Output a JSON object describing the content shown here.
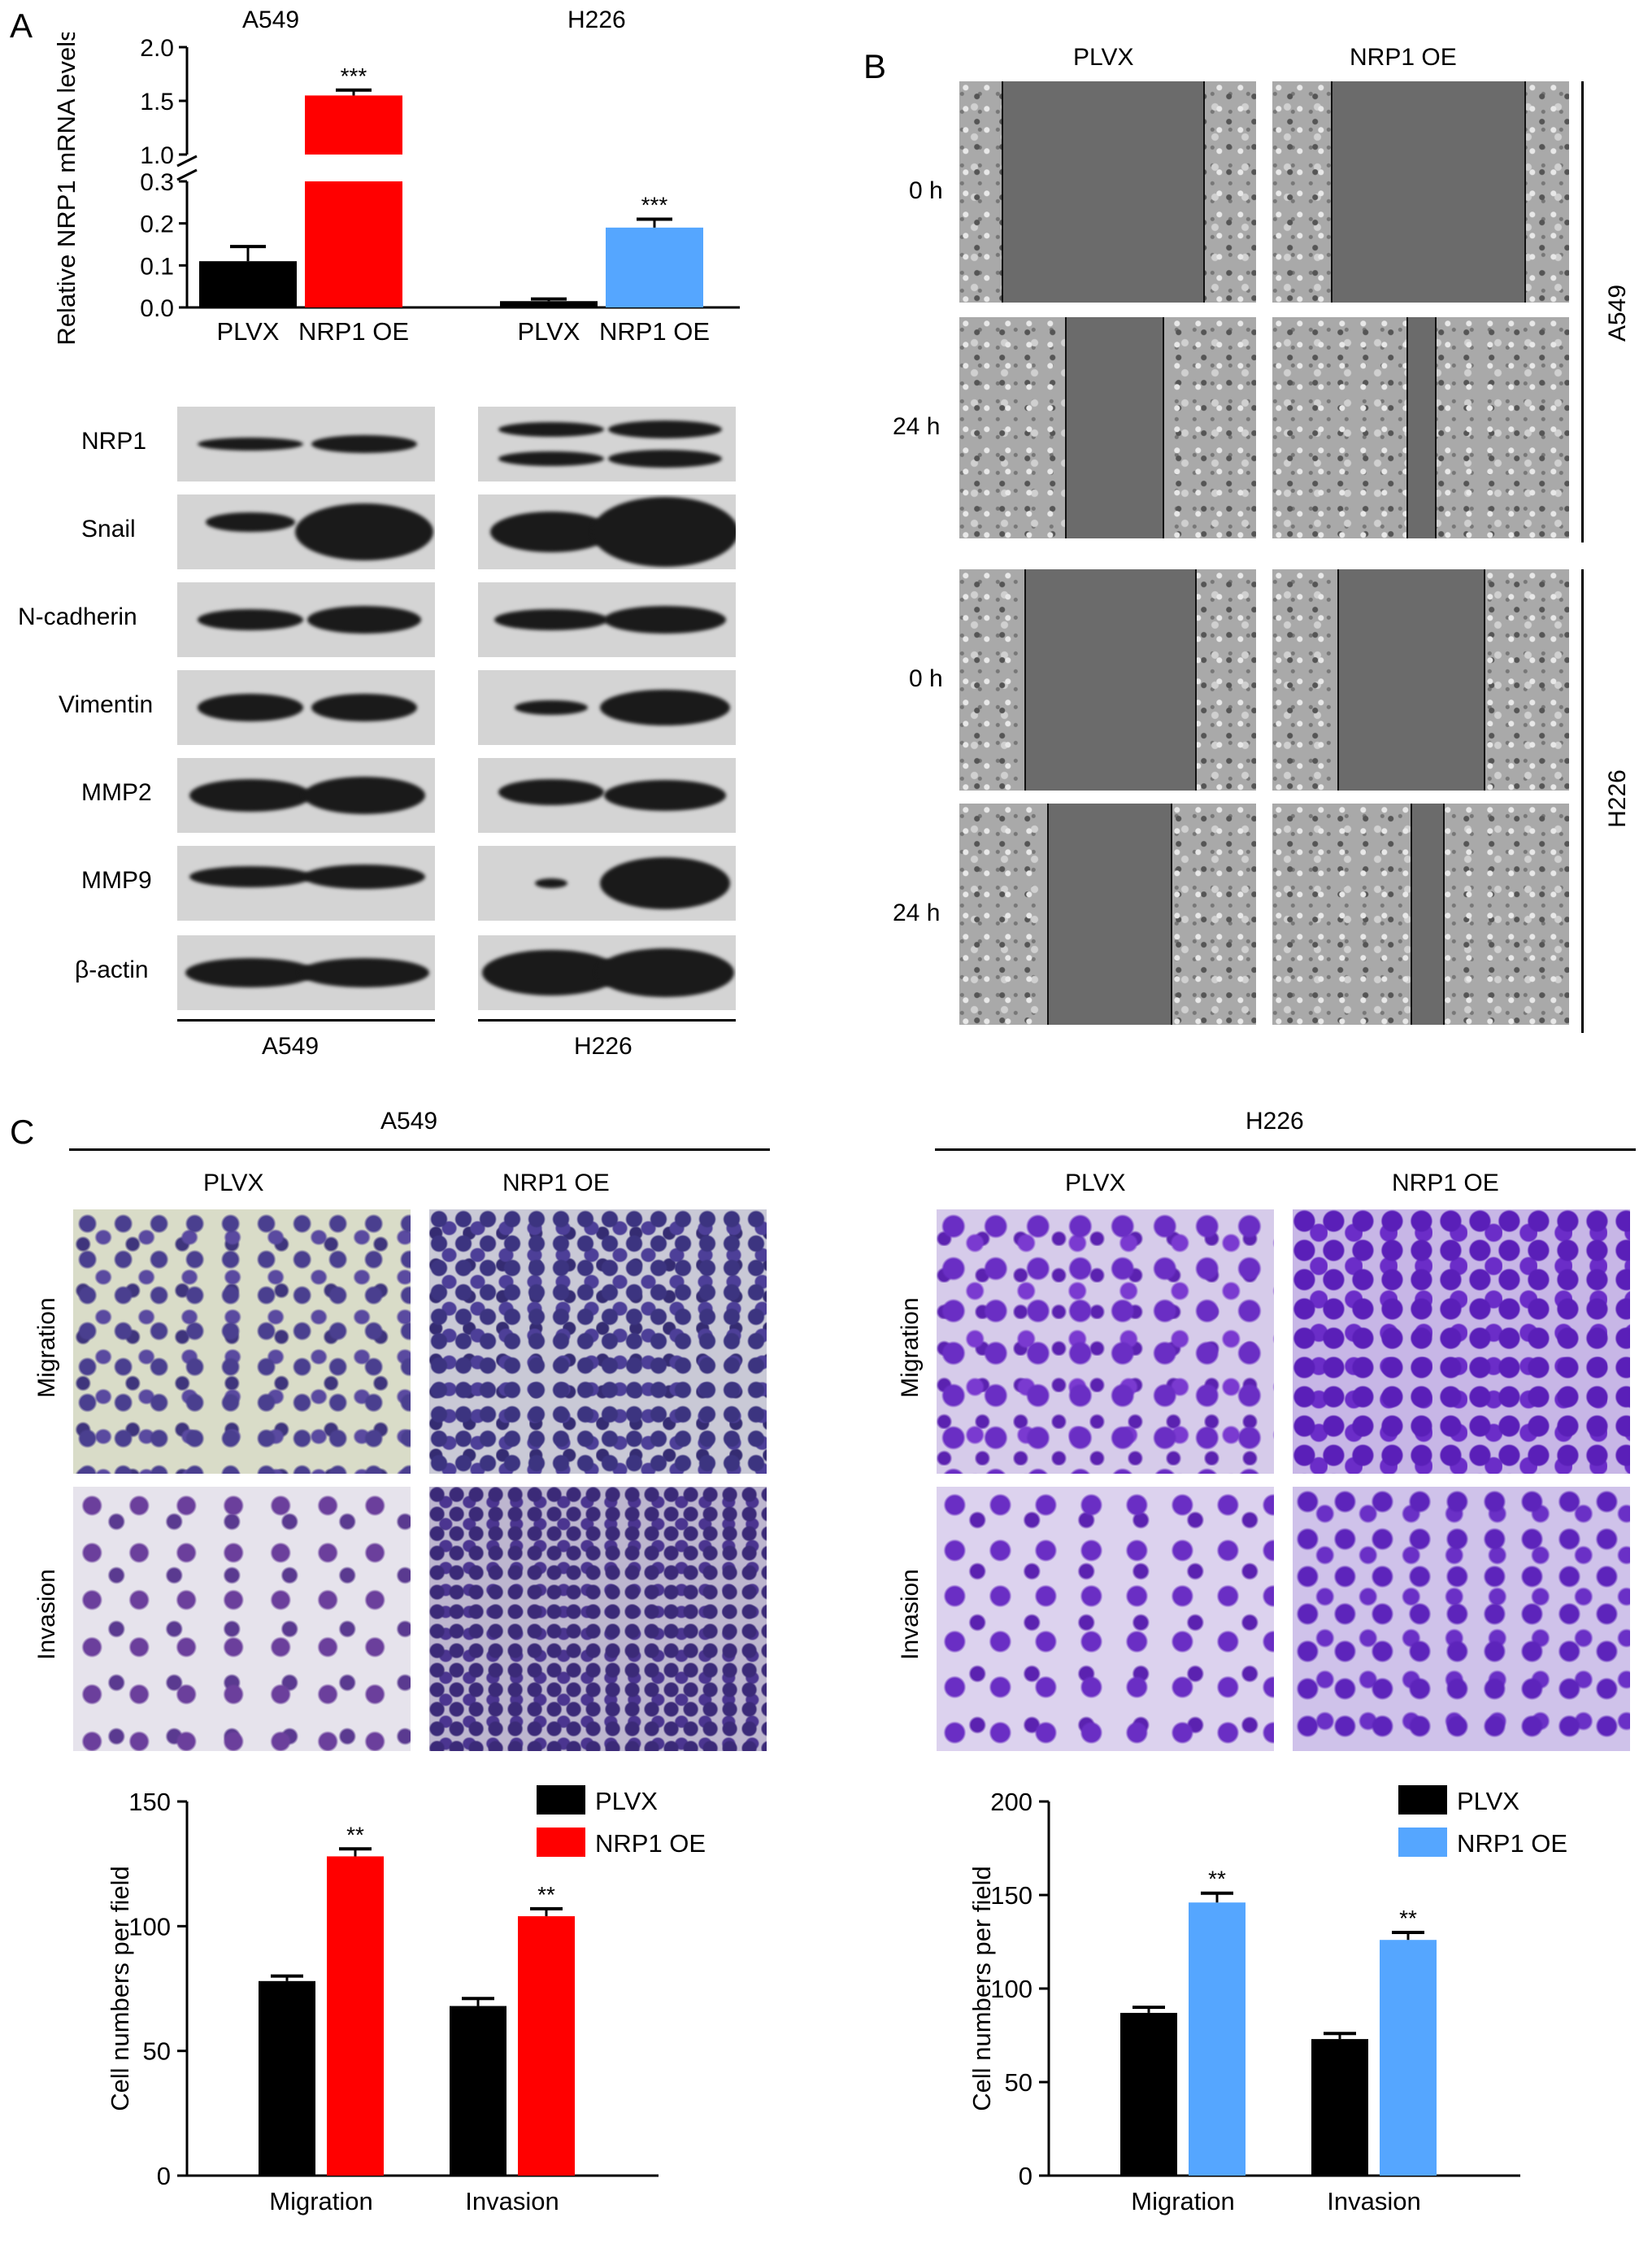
{
  "panels": {
    "a": "A",
    "b": "B",
    "c": "C"
  },
  "colors": {
    "plvx": "#000000",
    "oe_a549": "#ff0000",
    "oe_h226": "#55a6ff"
  },
  "panel_a": {
    "cell_line_a549": "A549",
    "cell_line_h226": "H226",
    "western": {
      "proteins": [
        "NRP1",
        "Snail",
        "N-cadherin",
        "Vimentin",
        "MMP2",
        "MMP9",
        "β-actin"
      ],
      "group_a549": "A549",
      "group_h226": "H226"
    }
  },
  "panel_b": {
    "col_plvx": "PLVX",
    "col_oe": "NRP1 OE",
    "rows": [
      "0 h",
      "24 h",
      "0 h",
      "24 h"
    ],
    "side_a549": "A549",
    "side_h226": "H226"
  },
  "panel_c": {
    "header_a549": "A549",
    "header_h226": "H226",
    "col_plvx": "PLVX",
    "col_oe": "NRP1 OE",
    "row_migration": "Migration",
    "row_invasion": "Invasion"
  },
  "chart_data": [
    {
      "type": "bar",
      "categories": [
        "PLVX",
        "NRP1 OE",
        "PLVX",
        "NRP1 OE"
      ],
      "groups": [
        "A549",
        "H226"
      ],
      "values": [
        0.11,
        1.55,
        0.015,
        0.19
      ],
      "errors": [
        0.035,
        0.05,
        0.005,
        0.02
      ],
      "significance": [
        "",
        "***",
        "",
        "***"
      ],
      "ylabel": "Relative NRP1 mRNA levels",
      "yticks_lower": [
        "0.0",
        "0.1",
        "0.2",
        "0.3"
      ],
      "yticks_upper": [
        "1.0",
        "1.5",
        "2.0"
      ],
      "ylim": [
        0,
        2.0
      ],
      "axis_break": [
        0.3,
        1.0
      ]
    },
    {
      "type": "bar",
      "categories": [
        "Migration",
        "Invasion"
      ],
      "series": [
        {
          "name": "PLVX",
          "values": [
            78,
            68
          ],
          "errors": [
            2,
            3
          ]
        },
        {
          "name": "NRP1 OE",
          "values": [
            128,
            104
          ],
          "errors": [
            3,
            3
          ]
        }
      ],
      "significance": [
        "**",
        "**"
      ],
      "ylabel": "Cell numbers per field",
      "yticks": [
        "0",
        "50",
        "100",
        "150"
      ],
      "ylim": [
        0,
        150
      ],
      "legend": "top-right"
    },
    {
      "type": "bar",
      "categories": [
        "Migration",
        "Invasion"
      ],
      "series": [
        {
          "name": "PLVX",
          "values": [
            87,
            73
          ],
          "errors": [
            3,
            3
          ]
        },
        {
          "name": "NRP1 OE",
          "values": [
            146,
            126
          ],
          "errors": [
            5,
            4
          ]
        }
      ],
      "significance": [
        "**",
        "**"
      ],
      "ylabel": "Cell numbers per field",
      "yticks": [
        "0",
        "50",
        "100",
        "150",
        "200"
      ],
      "ylim": [
        0,
        200
      ],
      "legend": "top-right"
    }
  ]
}
